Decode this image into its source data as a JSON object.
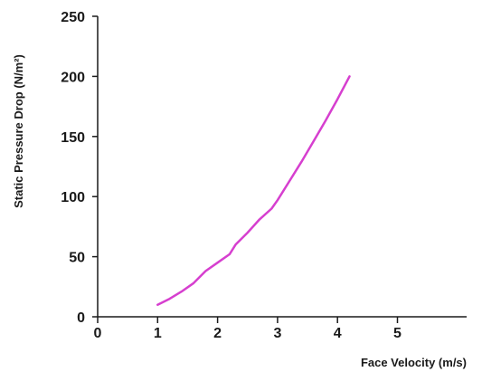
{
  "chart_data": {
    "type": "line",
    "title": "",
    "xlabel": "Face Velocity (m/s)",
    "ylabel": "Static Pressure Drop (N/m²)",
    "xlim": [
      0,
      6.2
    ],
    "ylim": [
      0,
      250
    ],
    "x_ticks": [
      "0",
      "1",
      "2",
      "3",
      "4",
      "5"
    ],
    "y_ticks": [
      "0",
      "50",
      "100",
      "150",
      "200",
      "250"
    ],
    "grid": false,
    "series_color": "#d63fcf",
    "series": [
      {
        "x": [
          1.0,
          1.2,
          1.4,
          1.6,
          1.8,
          2.0,
          2.2,
          2.3,
          2.5,
          2.7,
          2.9,
          3.0,
          3.2,
          3.4,
          3.6,
          3.8,
          4.0,
          4.2
        ],
        "y": [
          10,
          15,
          21,
          28,
          38,
          45,
          52,
          60,
          70,
          81,
          90,
          97,
          113,
          129,
          146,
          163,
          181,
          200
        ]
      }
    ]
  }
}
